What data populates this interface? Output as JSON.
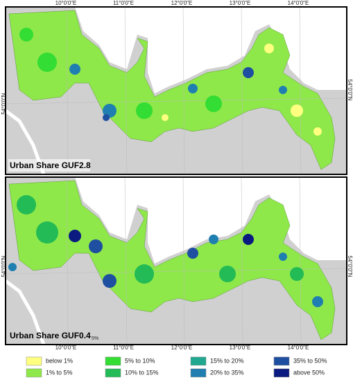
{
  "top_map": {
    "title": "Urban Share GUF2.8"
  },
  "bottom_map": {
    "title": "Urban Share GUF0.4",
    "note": "5%"
  },
  "longitude_labels": [
    "10°0'0\"E",
    "11°0'0\"E",
    "12°0'0\"E",
    "13°0'0\"E",
    "14°0'0\"E"
  ],
  "latitude_label": "54°0'0\"N",
  "legend": [
    {
      "label": "below 1%",
      "color": "#ffff80"
    },
    {
      "label": "1% to 5%",
      "color": "#8fe84a"
    },
    {
      "label": "5% to 10%",
      "color": "#33dd33"
    },
    {
      "label": "10% to 15%",
      "color": "#22bb55"
    },
    {
      "label": "15% to 20%",
      "color": "#20a890"
    },
    {
      "label": "20% to 35%",
      "color": "#1f7fb0"
    },
    {
      "label": "35% to 50%",
      "color": "#1f4fa0"
    },
    {
      "label": "above 50%",
      "color": "#0a1a80"
    }
  ]
}
